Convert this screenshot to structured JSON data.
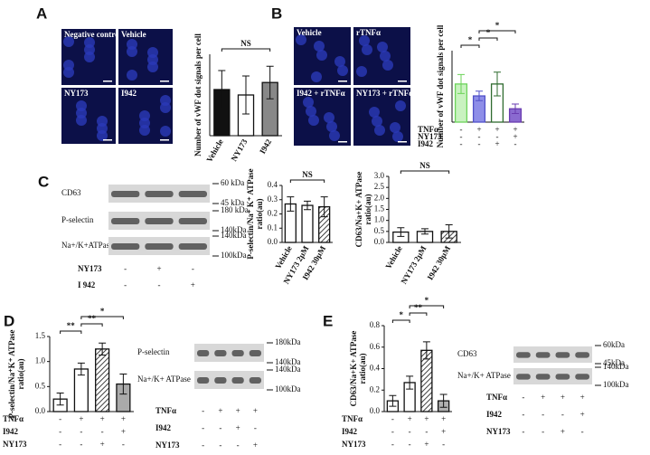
{
  "panels": [
    "A",
    "B",
    "C",
    "D",
    "E"
  ],
  "images_A": [
    "Negative control",
    "Vehicle",
    "NY173",
    "I942"
  ],
  "images_B": [
    "Vehicle",
    "rTNFα",
    "I942 + rTNFα",
    "NY173 + rTNFα"
  ],
  "blot_C": {
    "rows": [
      {
        "name": "CD63",
        "markers": [
          "60 kDa",
          "45 kDa"
        ]
      },
      {
        "name": "P-selectin",
        "markers": [
          "180 kDa",
          "140kDa"
        ]
      },
      {
        "name": "Na+/K+ATPase",
        "markers": [
          "140kDa",
          "100kDa"
        ]
      }
    ],
    "conditions": [
      {
        "name": "NY173",
        "signs": [
          "-",
          "+",
          "-"
        ]
      },
      {
        "name": "I 942",
        "signs": [
          "-",
          "-",
          "+"
        ]
      }
    ]
  },
  "blot_D": {
    "rows": [
      {
        "name": "P-selectin",
        "markers": [
          "180kDa",
          "140kDa"
        ]
      },
      {
        "name": "Na+/K+ ATPase",
        "markers": [
          "140kDa",
          "100kDa"
        ]
      }
    ],
    "conditions": [
      {
        "name": "TNFα",
        "signs": [
          "-",
          "+",
          "+",
          "+"
        ]
      },
      {
        "name": "I942",
        "signs": [
          "-",
          "-",
          "+",
          "-"
        ]
      },
      {
        "name": "NY173",
        "signs": [
          "-",
          "-",
          "-",
          "+"
        ]
      }
    ]
  },
  "blot_E": {
    "rows": [
      {
        "name": "CD63",
        "markers": [
          "60kDa",
          "45kDa"
        ]
      },
      {
        "name": "Na+/K+ ATPase",
        "markers": [
          "140kDa",
          "100kDa"
        ]
      }
    ],
    "conditions": [
      {
        "name": "TNFα",
        "signs": [
          "-",
          "+",
          "+",
          "+"
        ]
      },
      {
        "name": "I942",
        "signs": [
          "-",
          "-",
          "-",
          "+"
        ]
      },
      {
        "name": "NY173",
        "signs": [
          "-",
          "-",
          "+",
          "-"
        ]
      }
    ]
  },
  "chart_data": [
    {
      "type": "bar",
      "ylabel": [
        "Number of vWF dot signals per cell"
      ],
      "categories": [
        "Vehicle",
        "NY173",
        "I942"
      ],
      "values": [
        8.5,
        7.5,
        9.8
      ],
      "errors": [
        3.5,
        3.5,
        3
      ],
      "colors": [
        "#111111",
        "#ffffff",
        "#888888"
      ],
      "edge_colors": [
        "#111111",
        "#111111",
        "#111111"
      ],
      "hatch": [
        false,
        false,
        false
      ],
      "ylim": [
        0,
        15
      ],
      "brackets": [
        {
          "label": "NS",
          "from": 0,
          "to": 2
        }
      ]
    },
    {
      "type": "bar",
      "ylabel": [
        "Number of vWF dot signals per cell"
      ],
      "values": [
        8,
        5.5,
        8,
        2.8
      ],
      "errors": [
        2,
        1,
        2.5,
        1
      ],
      "colors": [
        "#c9f2c0",
        "#8e8ee8",
        "#ffffff",
        "#8a6ad0"
      ],
      "edge_colors": [
        "#6cd35a",
        "#5050c8",
        "#2f6b2f",
        "#6a3cb0"
      ],
      "hatch": [
        false,
        false,
        false,
        false
      ],
      "ylim": [
        0,
        15
      ],
      "brackets": [
        {
          "label": "*",
          "from": 0,
          "to": 1
        },
        {
          "label": "*",
          "from": 1,
          "to": 2
        },
        {
          "label": "*",
          "from": 1,
          "to": 3
        }
      ],
      "conditions": [
        {
          "name": "TNFα",
          "signs": [
            "-",
            "+",
            "+",
            "+"
          ]
        },
        {
          "name": "NY173",
          "signs": [
            "-",
            "-",
            "-",
            "+"
          ]
        },
        {
          "name": "I942",
          "signs": [
            "-",
            "-",
            "+",
            "-"
          ]
        }
      ]
    },
    {
      "type": "bar",
      "ylabel": [
        "P-selectin/Na⁺ K⁺ ATPase",
        "ratio(au)"
      ],
      "categories": [
        "Vehicle",
        "NY173 2μM",
        "I942 30μM"
      ],
      "values": [
        0.27,
        0.26,
        0.25
      ],
      "errors": [
        0.05,
        0.03,
        0.07
      ],
      "colors": [
        "#ffffff",
        "#ffffff",
        "#ffffff"
      ],
      "edge_colors": [
        "#111111",
        "#111111",
        "#111111"
      ],
      "hatch": [
        false,
        false,
        true
      ],
      "ylim": [
        0,
        0.4
      ],
      "yticks": [
        {
          "value": 0,
          "label": "0.0"
        },
        0.1,
        0.2,
        0.3,
        0.4
      ],
      "brackets": [
        {
          "label": "NS",
          "from": 0,
          "to": 2
        }
      ]
    },
    {
      "type": "bar",
      "ylabel": [
        "CD63/Na+K+ ATPase",
        "ratio(au)"
      ],
      "categories": [
        "Vehicle",
        "NY173 2μM",
        "I942 30μM"
      ],
      "values": [
        0.47,
        0.5,
        0.5
      ],
      "errors": [
        0.2,
        0.12,
        0.3
      ],
      "colors": [
        "#ffffff",
        "#ffffff",
        "#ffffff"
      ],
      "edge_colors": [
        "#111111",
        "#111111",
        "#111111"
      ],
      "hatch": [
        false,
        false,
        true
      ],
      "ylim": [
        0,
        3
      ],
      "yticks": [
        {
          "value": 0,
          "label": "0.0"
        },
        0.5,
        {
          "value": 1,
          "label": "1.0"
        },
        1.5,
        {
          "value": 2,
          "label": "2.0"
        },
        2.5,
        {
          "value": 3,
          "label": "3.0"
        }
      ],
      "brackets": [
        {
          "label": "NS",
          "from": 0,
          "to": 2
        }
      ]
    },
    {
      "type": "bar",
      "ylabel": [
        "P-selectin/Na⁺K⁺ ATPase",
        "ratio(au)"
      ],
      "values": [
        0.25,
        0.85,
        1.25,
        0.55
      ],
      "errors": [
        0.12,
        0.12,
        0.12,
        0.2
      ],
      "colors": [
        "#ffffff",
        "#ffffff",
        "#ffffff",
        "#aaaaaa"
      ],
      "edge_colors": [
        "#111111",
        "#111111",
        "#111111",
        "#111111"
      ],
      "hatch": [
        false,
        false,
        true,
        false
      ],
      "ylim": [
        0,
        1.5
      ],
      "yticks": [
        {
          "value": 0,
          "label": "0.0"
        },
        0.5,
        {
          "value": 1,
          "label": "1.0"
        },
        1.5
      ],
      "brackets": [
        {
          "label": "**",
          "from": 0,
          "to": 1
        },
        {
          "label": "**",
          "from": 1,
          "to": 2
        },
        {
          "label": "*",
          "from": 1,
          "to": 3
        }
      ],
      "conditions": [
        {
          "name": "TNFα",
          "signs": [
            "-",
            "+",
            "+",
            "+"
          ]
        },
        {
          "name": "I942",
          "signs": [
            "-",
            "-",
            "-",
            "+"
          ]
        },
        {
          "name": "NY173",
          "signs": [
            "-",
            "-",
            "+",
            "-"
          ]
        }
      ]
    },
    {
      "type": "bar",
      "ylabel": [
        "CD63/Na+K+ ATPase",
        "ratio(au)"
      ],
      "values": [
        0.1,
        0.27,
        0.57,
        0.1
      ],
      "errors": [
        0.05,
        0.06,
        0.08,
        0.06
      ],
      "colors": [
        "#ffffff",
        "#ffffff",
        "#ffffff",
        "#b0b0b0"
      ],
      "edge_colors": [
        "#111111",
        "#111111",
        "#111111",
        "#111111"
      ],
      "hatch": [
        false,
        false,
        true,
        false
      ],
      "ylim": [
        0,
        0.8
      ],
      "yticks": [
        {
          "value": 0,
          "label": "0.0"
        },
        0.2,
        0.4,
        0.6,
        0.8
      ],
      "brackets": [
        {
          "label": "*",
          "from": 0,
          "to": 1
        },
        {
          "label": "**",
          "from": 1,
          "to": 2
        },
        {
          "label": "*",
          "from": 1,
          "to": 3
        }
      ],
      "conditions": [
        {
          "name": "TNFα",
          "signs": [
            "-",
            "+",
            "+",
            "+"
          ]
        },
        {
          "name": "I942",
          "signs": [
            "-",
            "-",
            "-",
            "+"
          ]
        },
        {
          "name": "NY173",
          "signs": [
            "-",
            "-",
            "+",
            "-"
          ]
        }
      ]
    }
  ]
}
